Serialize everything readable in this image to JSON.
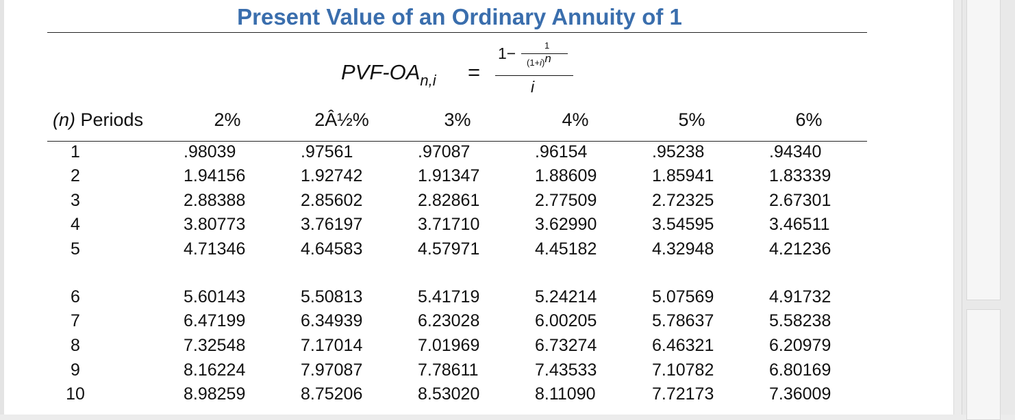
{
  "title": "Present Value of an Ordinary Annuity of 1",
  "formula": {
    "lhs_main": "PVF-OA",
    "lhs_sub": "n,i",
    "equals": "=",
    "num_one_minus": "1−",
    "inner_num": "1",
    "inner_den": "(1+",
    "inner_den_i": "i",
    "inner_den_close": ")",
    "inner_exp": "n",
    "den": "i"
  },
  "table": {
    "period_header_var": "(n)",
    "period_header_label": "Periods",
    "rate_headers": [
      "2%",
      "2Â½%",
      "3%",
      "4%",
      "5%",
      "6%"
    ],
    "rows": [
      {
        "period": "1",
        "values": [
          ".98039",
          ".97561",
          ".97087",
          ".96154",
          ".95238",
          ".94340"
        ]
      },
      {
        "period": "2",
        "values": [
          "1.94156",
          "1.92742",
          "1.91347",
          "1.88609",
          "1.85941",
          "1.83339"
        ]
      },
      {
        "period": "3",
        "values": [
          "2.88388",
          "2.85602",
          "2.82861",
          "2.77509",
          "2.72325",
          "2.67301"
        ]
      },
      {
        "period": "4",
        "values": [
          "3.80773",
          "3.76197",
          "3.71710",
          "3.62990",
          "3.54595",
          "3.46511"
        ]
      },
      {
        "period": "5",
        "values": [
          "4.71346",
          "4.64583",
          "4.57971",
          "4.45182",
          "4.32948",
          "4.21236"
        ]
      },
      {
        "period": "6",
        "values": [
          "5.60143",
          "5.50813",
          "5.41719",
          "5.24214",
          "5.07569",
          "4.91732"
        ]
      },
      {
        "period": "7",
        "values": [
          "6.47199",
          "6.34939",
          "6.23028",
          "6.00205",
          "5.78637",
          "5.58238"
        ]
      },
      {
        "period": "8",
        "values": [
          "7.32548",
          "7.17014",
          "7.01969",
          "6.73274",
          "6.46321",
          "6.20979"
        ]
      },
      {
        "period": "9",
        "values": [
          "8.16224",
          "7.97087",
          "7.78611",
          "7.43533",
          "7.10782",
          "6.80169"
        ]
      },
      {
        "period": "10",
        "values": [
          "8.98259",
          "8.75206",
          "8.53020",
          "8.11090",
          "7.72173",
          "7.36009"
        ]
      }
    ]
  },
  "colors": {
    "title": "#3a6ead",
    "text": "#111111",
    "background": "#ffffff"
  }
}
